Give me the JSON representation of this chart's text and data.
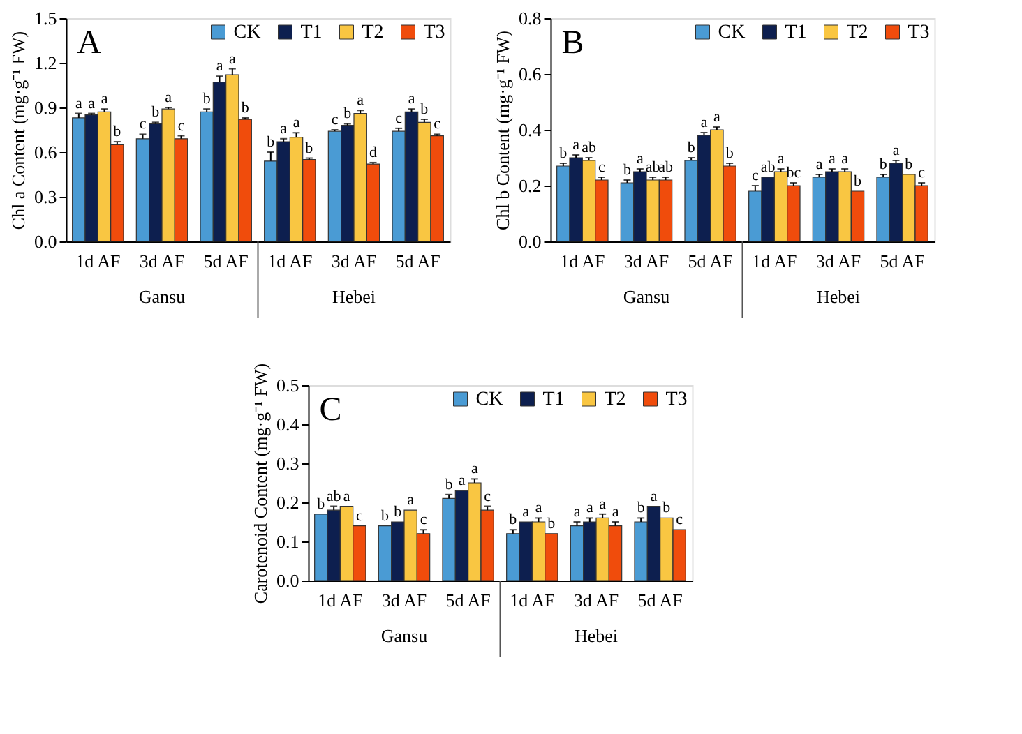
{
  "chart_data": [
    {
      "type": "bar",
      "title": "A",
      "ylabel": "Chl a Content (mg·g⁻¹ FW)",
      "categories": [
        "1d AF",
        "3d AF",
        "5d AF",
        "1d AF",
        "3d AF",
        "5d AF"
      ],
      "ylim": [
        0,
        1.5
      ],
      "yticks": [
        {
          "value": 0,
          "label": "0.0"
        },
        0.3,
        0.6,
        0.9,
        1.2,
        1.5
      ],
      "grid": false,
      "legend": "top right",
      "annotations": [
        "Gansu",
        "Hebei"
      ],
      "series": [
        {
          "name": "CK",
          "color": "#4a9bd4",
          "values": [
            0.83,
            0.69,
            0.87,
            0.54,
            0.74,
            0.74
          ],
          "errors": [
            0.03,
            0.03,
            0.02,
            0.06,
            0.01,
            0.02
          ],
          "value_labels": [
            "a",
            "c",
            "b",
            "b",
            "c",
            "c"
          ]
        },
        {
          "name": "T1",
          "color": "#0d1f4f",
          "values": [
            0.85,
            0.79,
            1.07,
            0.67,
            0.78,
            0.87
          ],
          "errors": [
            0.01,
            0.01,
            0.04,
            0.02,
            0.01,
            0.02
          ],
          "value_labels": [
            "a",
            "b",
            "a",
            "a",
            "b",
            "a"
          ]
        },
        {
          "name": "T2",
          "color": "#f9c642",
          "values": [
            0.87,
            0.89,
            1.12,
            0.7,
            0.86,
            0.8
          ],
          "errors": [
            0.02,
            0.01,
            0.04,
            0.03,
            0.02,
            0.02
          ],
          "value_labels": [
            "a",
            "a",
            "a",
            "a",
            "a",
            "b"
          ]
        },
        {
          "name": "T3",
          "color": "#f04c0c",
          "values": [
            0.65,
            0.69,
            0.82,
            0.55,
            0.52,
            0.71
          ],
          "errors": [
            0.02,
            0.02,
            0.01,
            0.01,
            0.01,
            0.01
          ],
          "value_labels": [
            "b",
            "c",
            "b",
            "b",
            "d",
            "c"
          ]
        }
      ]
    },
    {
      "type": "bar",
      "title": "B",
      "ylabel": "Chl b Content (mg·g⁻¹ FW)",
      "categories": [
        "1d AF",
        "3d AF",
        "5d AF",
        "1d AF",
        "3d AF",
        "5d AF"
      ],
      "ylim": [
        0,
        0.8
      ],
      "yticks": [
        {
          "value": 0,
          "label": "0.0"
        },
        0.2,
        0.4,
        0.6,
        0.8
      ],
      "grid": false,
      "legend": "top right",
      "annotations": [
        "Gansu",
        "Hebei"
      ],
      "series": [
        {
          "name": "CK",
          "color": "#4a9bd4",
          "values": [
            0.27,
            0.21,
            0.29,
            0.18,
            0.23,
            0.23
          ],
          "errors": [
            0.01,
            0.01,
            0.01,
            0.02,
            0.01,
            0.01
          ],
          "value_labels": [
            "b",
            "b",
            "b",
            "c",
            "a",
            "b"
          ]
        },
        {
          "name": "T1",
          "color": "#0d1f4f",
          "values": [
            0.3,
            0.25,
            0.38,
            0.23,
            0.25,
            0.28
          ],
          "errors": [
            0.01,
            0.01,
            0.01,
            null,
            0.01,
            0.01
          ],
          "value_labels": [
            "a",
            "a",
            "a",
            "ab",
            "a",
            "a"
          ]
        },
        {
          "name": "T2",
          "color": "#f9c642",
          "values": [
            0.29,
            0.22,
            0.4,
            0.25,
            0.25,
            0.24
          ],
          "errors": [
            0.01,
            0.01,
            0.01,
            0.01,
            0.01,
            null
          ],
          "value_labels": [
            "ab",
            "ab",
            "a",
            "a",
            "a",
            "b"
          ]
        },
        {
          "name": "T3",
          "color": "#f04c0c",
          "values": [
            0.22,
            0.22,
            0.27,
            0.2,
            0.18,
            0.2
          ],
          "errors": [
            0.01,
            0.01,
            0.01,
            0.01,
            null,
            0.01
          ],
          "value_labels": [
            "c",
            "ab",
            "b",
            "bc",
            "b",
            "c"
          ]
        }
      ]
    },
    {
      "type": "bar",
      "title": "C",
      "ylabel": "Carotenoid Content (mg·g⁻¹ FW)",
      "categories": [
        "1d AF",
        "3d AF",
        "5d AF",
        "1d AF",
        "3d AF",
        "5d AF"
      ],
      "ylim": [
        0,
        0.5
      ],
      "yticks": [
        {
          "value": 0,
          "label": "0.0"
        },
        0.1,
        0.2,
        0.3,
        0.4,
        0.5
      ],
      "grid": false,
      "legend": "top right",
      "annotations": [
        "Gansu",
        "Hebei"
      ],
      "series": [
        {
          "name": "CK",
          "color": "#4a9bd4",
          "values": [
            0.17,
            0.14,
            0.21,
            0.12,
            0.14,
            0.15
          ],
          "errors": [
            null,
            null,
            0.01,
            0.01,
            0.01,
            0.01
          ],
          "value_labels": [
            "b",
            "b",
            "b",
            "b",
            "a",
            "b"
          ]
        },
        {
          "name": "T1",
          "color": "#0d1f4f",
          "values": [
            0.18,
            0.15,
            0.23,
            0.15,
            0.15,
            0.19
          ],
          "errors": [
            0.01,
            null,
            null,
            null,
            0.01,
            null
          ],
          "value_labels": [
            "ab",
            "b",
            "a",
            "a",
            "a",
            "a"
          ]
        },
        {
          "name": "T2",
          "color": "#f9c642",
          "values": [
            0.19,
            0.18,
            0.25,
            0.15,
            0.16,
            0.16
          ],
          "errors": [
            null,
            null,
            0.01,
            0.01,
            0.01,
            null
          ],
          "value_labels": [
            "a",
            "a",
            "a",
            "a",
            "a",
            "b"
          ]
        },
        {
          "name": "T3",
          "color": "#f04c0c",
          "values": [
            0.14,
            0.12,
            0.18,
            0.12,
            0.14,
            0.13
          ],
          "errors": [
            null,
            0.01,
            0.01,
            null,
            0.01,
            null
          ],
          "value_labels": [
            "c",
            "c",
            "c",
            "b",
            "a",
            "c"
          ]
        }
      ]
    }
  ]
}
